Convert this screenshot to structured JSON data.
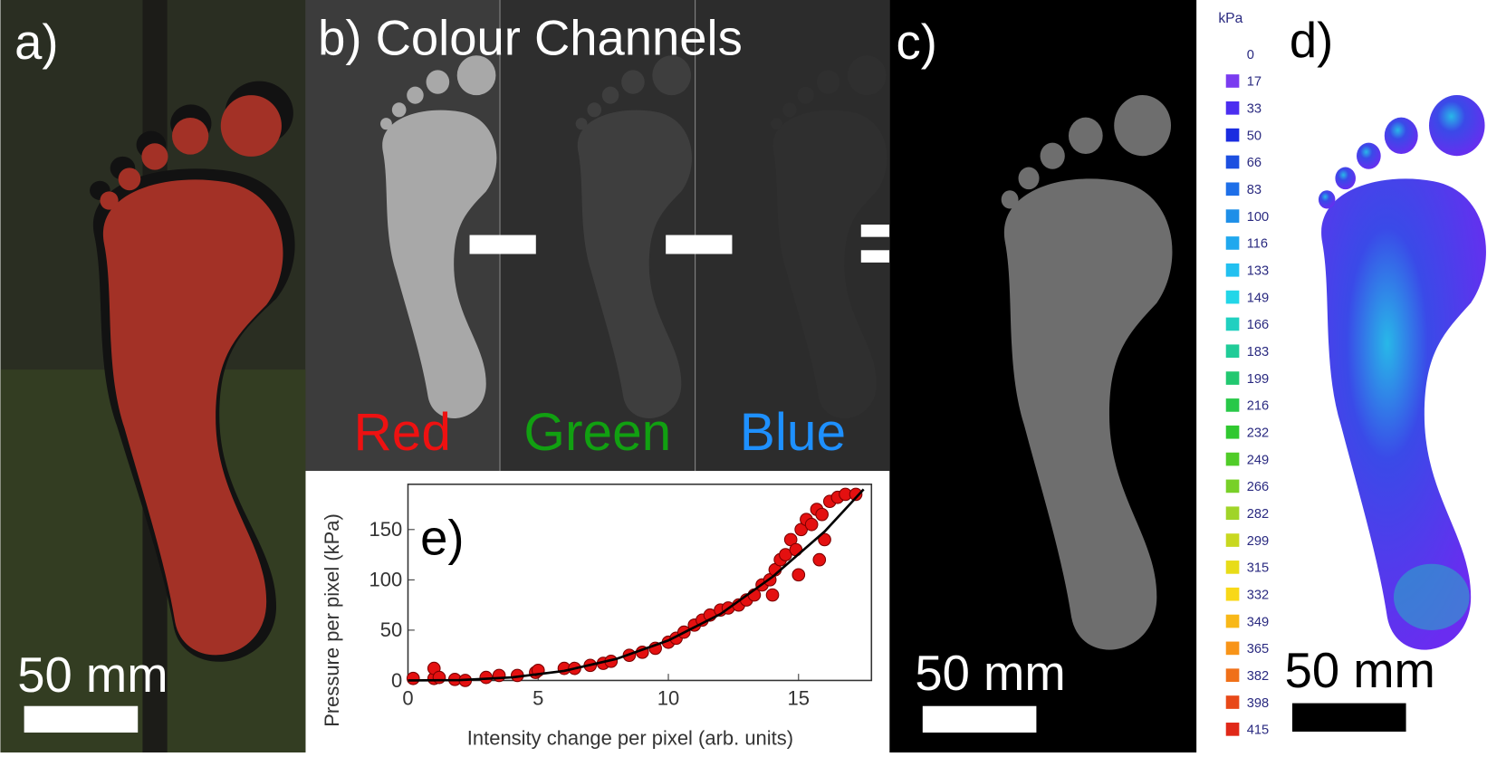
{
  "panels": {
    "a": {
      "label": "a)",
      "scale": "50 mm"
    },
    "b": {
      "label": "b) Colour Channels",
      "channels": [
        "Red",
        "Green",
        "Blue"
      ],
      "channel_colors": [
        "#ee1111",
        "#11a011",
        "#1e90ff"
      ]
    },
    "c": {
      "label": "c)",
      "scale": "50 mm"
    },
    "d": {
      "label": "d)",
      "scale": "50 mm",
      "colorbar": {
        "unit": "kPa",
        "levels": [
          0,
          17,
          33,
          50,
          66,
          83,
          100,
          116,
          133,
          149,
          166,
          183,
          199,
          216,
          232,
          249,
          266,
          282,
          299,
          315,
          332,
          349,
          365,
          382,
          398,
          415
        ],
        "colors": [
          "#ffffff",
          "#7a3cf0",
          "#4b2ef0",
          "#1a2ce0",
          "#1c4fe0",
          "#1e6fe8",
          "#1e8fe8",
          "#20a8ee",
          "#22c0f0",
          "#22d6e8",
          "#20d0c0",
          "#20cc98",
          "#22c870",
          "#28c848",
          "#30c830",
          "#50cc28",
          "#78d028",
          "#a0d428",
          "#c8d820",
          "#e8dc18",
          "#f8d818",
          "#f8b818",
          "#f89418",
          "#f07018",
          "#e84818",
          "#e02818"
        ]
      }
    }
  },
  "chart_data": {
    "type": "scatter",
    "label": "e)",
    "x_label": "Intensity change per pixel (arb. units)",
    "y_label": "Pressure per pixel (kPa)",
    "xlim": [
      0,
      17.8
    ],
    "xticks": [
      0,
      5,
      10,
      15
    ],
    "ylim": [
      0,
      195
    ],
    "yticks": [
      0,
      50,
      100,
      150
    ],
    "series": [
      {
        "mark": "dot",
        "color": "#e41010",
        "x": [
          0.2,
          1,
          1,
          1.2,
          1.8,
          2.2,
          3,
          3.5,
          4.2,
          4.9,
          5,
          6,
          6.4,
          7,
          7.5,
          7.8,
          8.5,
          9,
          9.5,
          10,
          10.3,
          10.6,
          11,
          11.3,
          11.6,
          12,
          12.3,
          12.7,
          13,
          13.3,
          13.6,
          13.9,
          14.1,
          14.3,
          14.5,
          14.7,
          14.9,
          15.1,
          15.3,
          15.5,
          15.7,
          15.9,
          16.2,
          16.5,
          16.8,
          17.2,
          15,
          15.8,
          14,
          16
        ],
        "values": [
          2,
          2,
          12,
          3,
          1,
          0,
          3,
          5,
          5,
          8,
          10,
          12,
          12,
          15,
          17,
          19,
          25,
          28,
          32,
          38,
          42,
          48,
          55,
          60,
          65,
          70,
          72,
          75,
          80,
          85,
          95,
          100,
          110,
          120,
          125,
          140,
          130,
          150,
          160,
          155,
          170,
          165,
          178,
          182,
          185,
          185,
          105,
          120,
          85,
          140
        ]
      },
      {
        "mark": "line",
        "color": "#000000",
        "x": [
          0,
          2,
          4,
          6,
          8,
          10,
          12,
          14,
          16,
          17.5
        ],
        "values": [
          0,
          0.4,
          3.1,
          9.5,
          21.4,
          39.8,
          66,
          103,
          148,
          190
        ]
      }
    ]
  }
}
